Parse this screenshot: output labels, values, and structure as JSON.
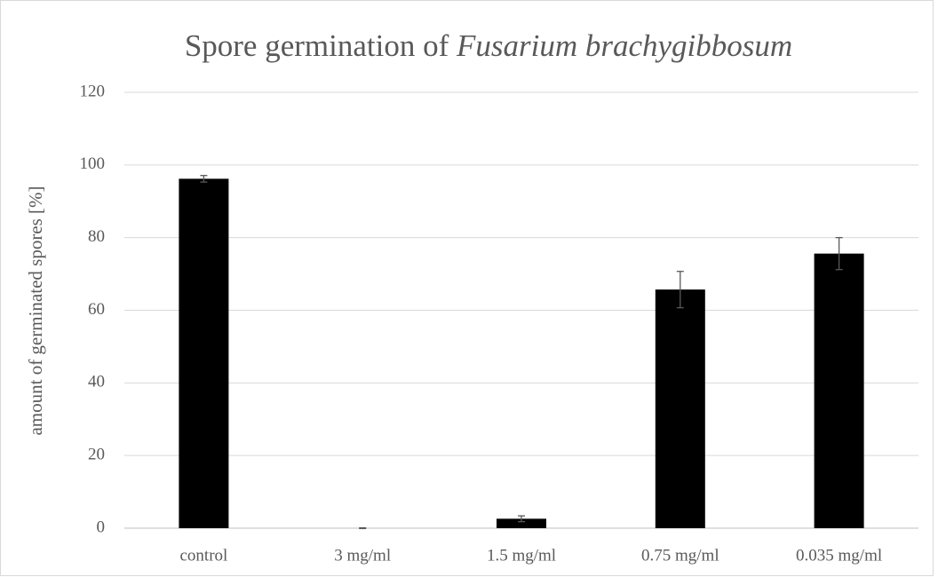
{
  "chart_data": {
    "type": "bar",
    "title": [
      "Spore germination of",
      "Fusarium brachygibbosum"
    ],
    "y_label": "amount of germinated spores [%]",
    "categories": [
      "control",
      "3 mg/ml",
      "1.5 mg/ml",
      "0.75 mg/ml",
      "0.035 mg/ml"
    ],
    "values": [
      96.2,
      0,
      2.6,
      65.7,
      75.6
    ],
    "errors": [
      0.9,
      0.1,
      0.8,
      5.0,
      4.4
    ],
    "color": "#000000",
    "ylim": [
      0,
      120
    ],
    "yticks": [
      0,
      20,
      40,
      60,
      80,
      100,
      120
    ],
    "grid": true
  }
}
